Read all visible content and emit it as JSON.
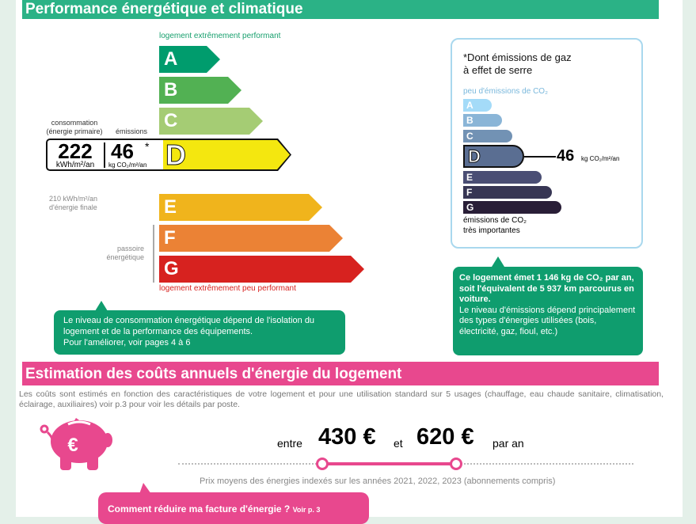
{
  "performance": {
    "title": "Performance énergétique et climatique",
    "top_label": "logement extrêmement performant",
    "bottom_label": "logement extrêmement peu performant",
    "classes": [
      "A",
      "B",
      "C",
      "D",
      "E",
      "F",
      "G"
    ],
    "class_colors": [
      "#009c6d",
      "#52b153",
      "#a5cc74",
      "#f4e70f",
      "#f0b41c",
      "#eb8235",
      "#d7221f"
    ],
    "current_class": "D",
    "consumption_label": "consommation\n(énergie primaire)",
    "emissions_label": "émissions",
    "consumption_value": "222",
    "consumption_unit": "kWh/m²/an",
    "emissions_value": "46",
    "emissions_asterisk": "*",
    "emissions_unit": "kg CO₂/m²/an",
    "final_energy": "210 kWh/m²/an\nd'énergie finale",
    "passoire_label": "passoire\nénergétique",
    "callout": "Le niveau de consommation énergétique dépend de l'isolation du logement et de la performance des équipements.",
    "callout_link": "Pour l'améliorer, voir pages 4 à 6"
  },
  "ges": {
    "title": "*Dont émissions de gaz\nà effet de serre",
    "top_label": "peu d'émissions de CO₂",
    "bottom_label": "émissions de CO₂\ntrès importantes",
    "classes": [
      "A",
      "B",
      "C",
      "D",
      "E",
      "F",
      "G"
    ],
    "class_colors": [
      "#a4dbf8",
      "#8ab5d7",
      "#7292b4",
      "#5a6e92",
      "#4a4e74",
      "#373654",
      "#291e37"
    ],
    "current_class": "D",
    "value": "46",
    "unit": "kg CO₂/m²/an",
    "callout_bold": "Ce logement émet 1 146 kg de CO₂ par an, soit l'équivalent de 5 937 km parcourus en voiture.",
    "callout_text": "Le niveau d'émissions dépend principalement des types d'énergies utilisées (bois, électricité, gaz, fioul, etc.)"
  },
  "costs": {
    "title": "Estimation des coûts annuels d'énergie du logement",
    "description": "Les coûts sont estimés en fonction des caractéristiques de votre logement et pour une utilisation standard sur 5 usages (chauffage, eau chaude sanitaire, climatisation, éclairage, auxiliaires) voir p.3 pour voir les détails par poste.",
    "between": "entre",
    "min": "430 €",
    "and": "et",
    "max": "620 €",
    "per_year": "par an",
    "prices_note": "Prix moyens des énergies indexés sur les années 2021, 2022, 2023 (abonnements compris)",
    "callout": "Comment réduire ma facture d'énergie ?",
    "callout_link": "Voir p. 3",
    "accent": "#e8488e"
  }
}
